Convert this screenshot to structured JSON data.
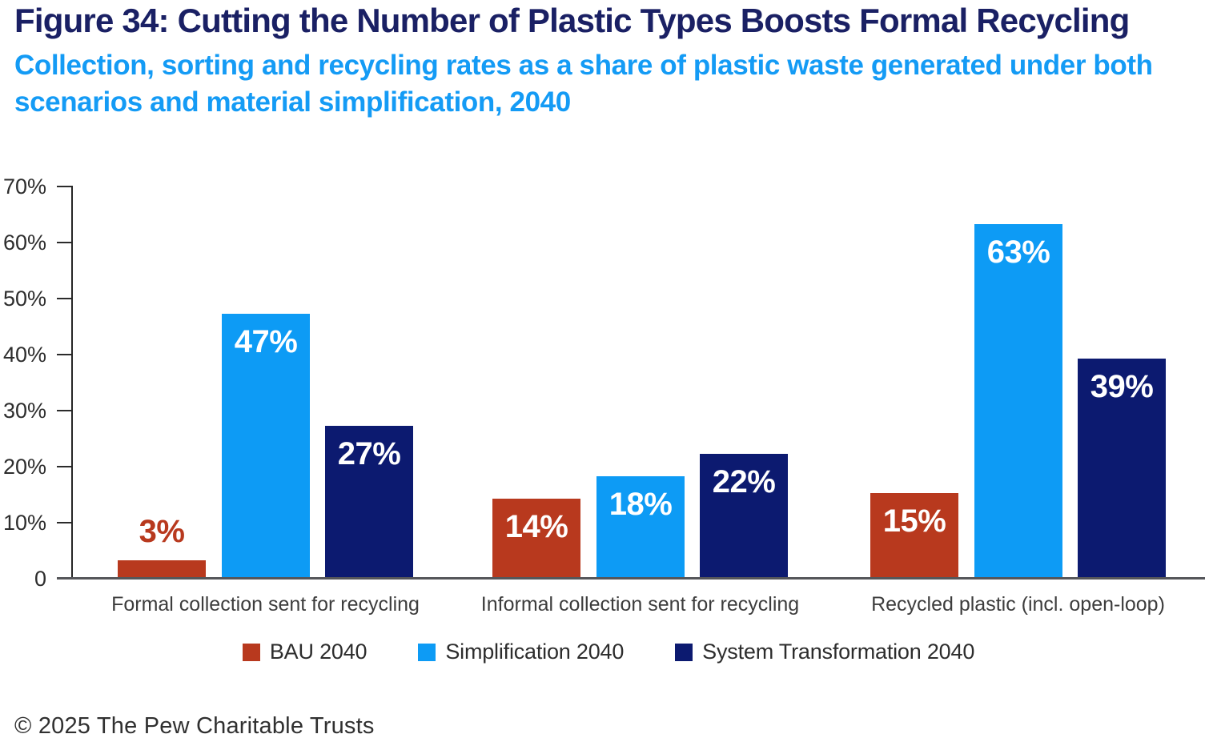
{
  "header": {
    "title": "Figure 34: Cutting the Number of Plastic Types Boosts Formal Recycling",
    "subtitle": "Collection, sorting and recycling rates as a share of plastic waste generated under both scenarios and material simplification, 2040",
    "title_color": "#1a2064",
    "subtitle_color": "#149bf5"
  },
  "chart_data": {
    "type": "bar",
    "categories": [
      "Formal collection sent for recycling",
      "Informal collection sent for recycling",
      "Recycled plastic (incl. open-loop)"
    ],
    "series": [
      {
        "name": "BAU 2040",
        "color": "#b8391e",
        "values": [
          3,
          14,
          15
        ]
      },
      {
        "name": "Simplification 2040",
        "color": "#0d9bf5",
        "values": [
          47,
          18,
          63
        ]
      },
      {
        "name": "System Transformation 2040",
        "color": "#0c1a70",
        "values": [
          27,
          22,
          39
        ]
      }
    ],
    "value_labels": [
      [
        "3%",
        "14%",
        "15%"
      ],
      [
        "47%",
        "18%",
        "63%"
      ],
      [
        "27%",
        "22%",
        "39%"
      ]
    ],
    "y_ticks": [
      "0",
      "10%",
      "20%",
      "30%",
      "40%",
      "50%",
      "60%",
      "70%"
    ],
    "ylim": [
      0,
      70
    ],
    "xlabel": "",
    "ylabel": "",
    "grid": false,
    "legend_position": "bottom",
    "value_label_inside_color": "#ffffff"
  },
  "footer": {
    "copyright": "© 2025 The Pew Charitable Trusts"
  }
}
